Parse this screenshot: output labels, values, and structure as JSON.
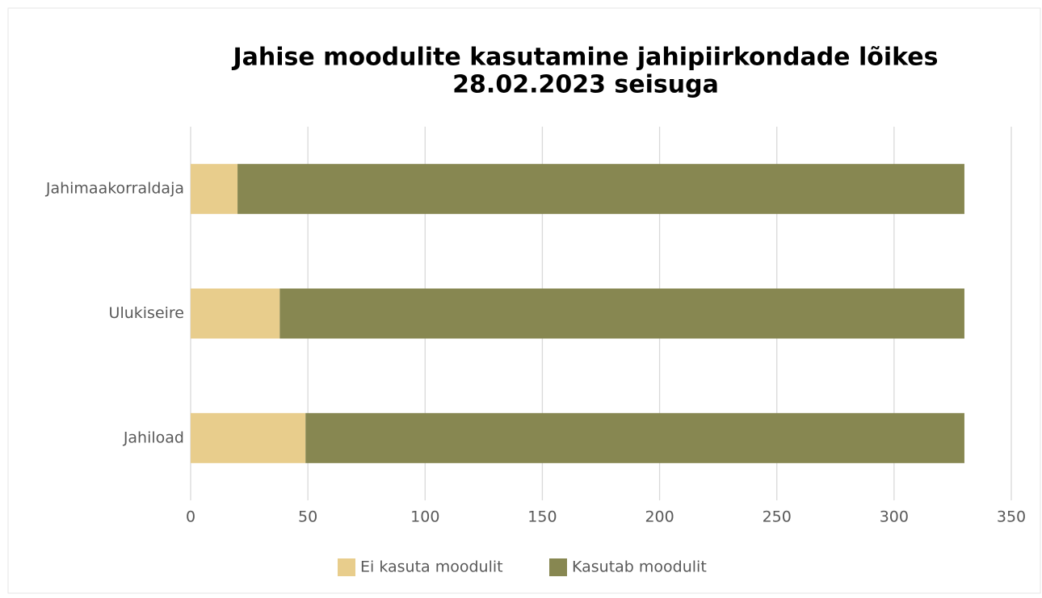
{
  "chart_data": {
    "type": "stacked-bar-horizontal",
    "title": "Jahise moodulite kasutamine jahipiirkondade lõikes",
    "subtitle": "28.02.2023 seisuga",
    "categories": [
      "Jahimaakorraldaja",
      "Ulukiseire",
      "Jahiload"
    ],
    "series": [
      {
        "name": "Ei kasuta moodulit",
        "color": "#e8cd8c",
        "values": [
          20,
          38,
          49
        ]
      },
      {
        "name": "Kasutab moodulit",
        "color": "#878751",
        "values": [
          310,
          292,
          281
        ]
      }
    ],
    "xlim": [
      0,
      350
    ],
    "xticks": [
      0,
      50,
      100,
      150,
      200,
      250,
      300,
      350
    ],
    "grid": true,
    "legend": "bottom"
  }
}
